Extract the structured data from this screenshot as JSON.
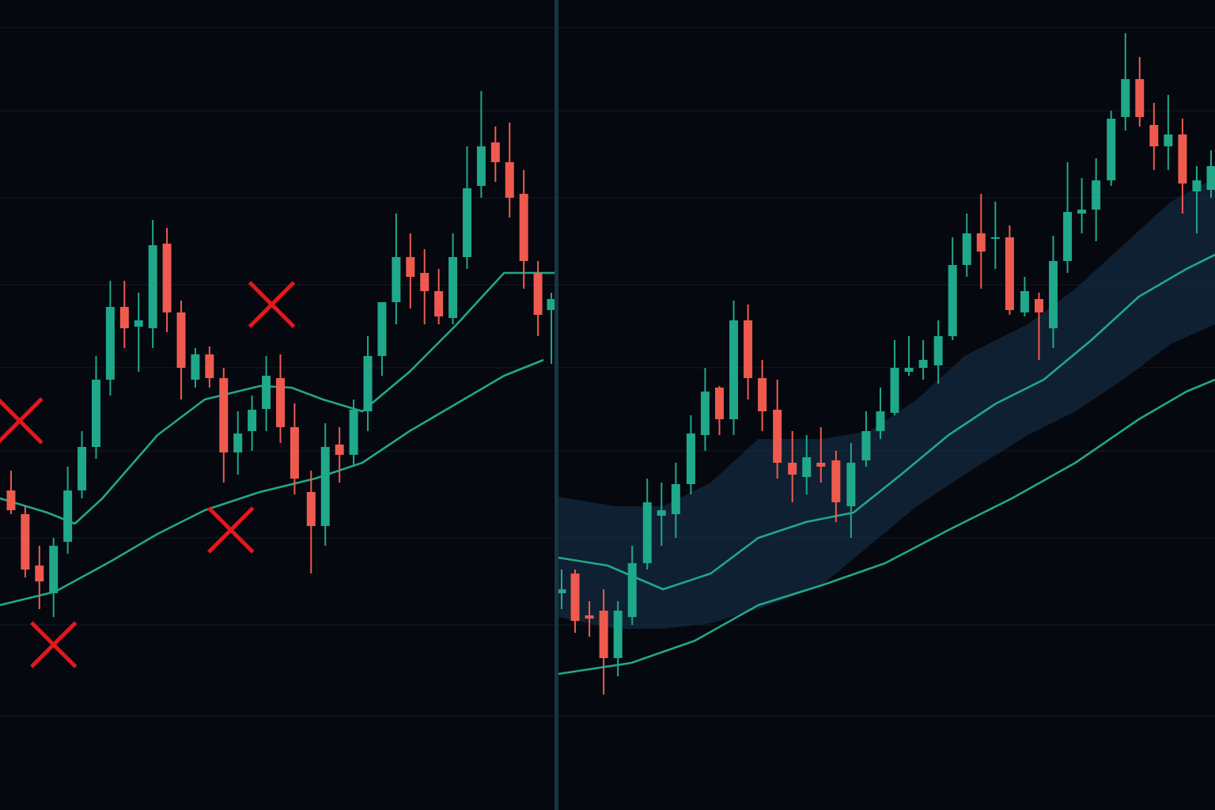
{
  "chart_data": [
    {
      "type": "candlestick",
      "xlim": [
        0,
        704
      ],
      "ylim": [
        0,
        1024
      ],
      "yticks": [
        119,
        234,
        344,
        454,
        559,
        664,
        774,
        884,
        989
      ],
      "grid": true,
      "up_color": "#1fa88a",
      "down_color": "#ef5a4f",
      "x": [
        14,
        32,
        50,
        68,
        86,
        104,
        122,
        140,
        158,
        176,
        194,
        212,
        230,
        248,
        266,
        284,
        302,
        320,
        338,
        356,
        374,
        395,
        413,
        431,
        449,
        467,
        485,
        503,
        521,
        539,
        557,
        575,
        593,
        611,
        629,
        647,
        665,
        683,
        700
      ],
      "open": [
        404,
        374,
        309,
        274,
        339,
        404,
        459,
        544,
        636,
        611,
        609,
        716,
        629,
        544,
        576,
        546,
        452,
        479,
        507,
        546,
        484,
        402,
        359,
        462,
        449,
        504,
        574,
        642,
        699,
        679,
        656,
        622,
        699,
        789,
        844,
        819,
        779,
        679,
        632
      ],
      "high": [
        429,
        384,
        334,
        344,
        434,
        479,
        574,
        669,
        669,
        654,
        746,
        736,
        644,
        584,
        586,
        559,
        504,
        524,
        574,
        576,
        514,
        429,
        489,
        484,
        519,
        599,
        639,
        754,
        729,
        709,
        684,
        729,
        839,
        909,
        864,
        869,
        809,
        694,
        654
      ],
      "low": [
        374,
        294,
        254,
        244,
        324,
        394,
        444,
        524,
        584,
        554,
        584,
        604,
        519,
        534,
        534,
        414,
        424,
        454,
        479,
        464,
        399,
        299,
        334,
        414,
        434,
        479,
        549,
        614,
        634,
        614,
        614,
        614,
        684,
        774,
        794,
        749,
        659,
        599,
        564
      ],
      "close": [
        379,
        304,
        289,
        334,
        404,
        459,
        544,
        636,
        609,
        619,
        714,
        629,
        559,
        576,
        546,
        452,
        476,
        506,
        549,
        484,
        419,
        359,
        459,
        449,
        506,
        574,
        642,
        699,
        674,
        656,
        624,
        699,
        786,
        839,
        819,
        774,
        694,
        626,
        646
      ],
      "lines": [
        {
          "color": "#1fa88a",
          "x": [
            0,
            60,
            95,
            130,
            200,
            260,
            330,
            370,
            410,
            460,
            520,
            580,
            640,
            705
          ],
          "values": [
            394,
            376,
            362,
            394,
            474,
            519,
            536,
            534,
            519,
            504,
            554,
            614,
            679,
            679
          ]
        },
        {
          "color": "#1fa88a",
          "x": [
            0,
            70,
            140,
            200,
            260,
            330,
            400,
            460,
            520,
            580,
            640,
            690
          ],
          "values": [
            259,
            276,
            314,
            349,
            379,
            402,
            419,
            439,
            479,
            514,
            549,
            569
          ]
        }
      ],
      "markers": {
        "color": "#e8161b",
        "x": [
          25,
          345,
          293,
          68
        ],
        "values": [
          492,
          639,
          354,
          209
        ]
      }
    },
    {
      "type": "candlestick",
      "xlim": [
        708,
        1536
      ],
      "ylim": [
        0,
        1024
      ],
      "yticks": [
        119,
        234,
        344,
        454,
        559,
        664,
        774,
        884,
        989
      ],
      "grid": true,
      "up_color": "#1fa88a",
      "down_color": "#ef5a4f",
      "x": [
        712,
        729,
        747,
        765,
        783,
        801,
        820,
        838,
        856,
        875,
        893,
        911,
        929,
        947,
        965,
        984,
        1003,
        1021,
        1039,
        1058,
        1077,
        1096,
        1114,
        1132,
        1150,
        1168,
        1187,
        1205,
        1223,
        1241,
        1259,
        1277,
        1296,
        1314,
        1332,
        1350,
        1368,
        1386,
        1405,
        1423,
        1441,
        1459,
        1477,
        1495,
        1513,
        1531
      ],
      "open": [
        274,
        299,
        246,
        252,
        192,
        244,
        312,
        372,
        374,
        412,
        474,
        534,
        494,
        619,
        546,
        506,
        439,
        421,
        439,
        442,
        384,
        442,
        479,
        502,
        554,
        559,
        562,
        599,
        689,
        729,
        722,
        724,
        629,
        646,
        609,
        694,
        754,
        759,
        796,
        876,
        924,
        866,
        839,
        854,
        782,
        784
      ],
      "high": [
        304,
        304,
        264,
        279,
        264,
        334,
        419,
        414,
        439,
        499,
        559,
        536,
        644,
        639,
        569,
        544,
        479,
        474,
        484,
        454,
        464,
        504,
        534,
        594,
        599,
        594,
        619,
        724,
        754,
        779,
        769,
        739,
        674,
        654,
        726,
        819,
        799,
        824,
        884,
        982,
        952,
        894,
        904,
        874,
        814,
        834
      ],
      "low": [
        254,
        224,
        219,
        146,
        169,
        234,
        304,
        334,
        344,
        399,
        454,
        474,
        474,
        519,
        479,
        419,
        389,
        399,
        414,
        364,
        344,
        434,
        469,
        499,
        549,
        544,
        539,
        594,
        674,
        659,
        684,
        626,
        624,
        569,
        584,
        679,
        729,
        719,
        789,
        859,
        864,
        809,
        809,
        754,
        729,
        774
      ],
      "close": [
        279,
        239,
        242,
        192,
        252,
        312,
        389,
        379,
        412,
        476,
        529,
        494,
        619,
        546,
        504,
        439,
        424,
        446,
        434,
        389,
        439,
        479,
        504,
        559,
        559,
        569,
        599,
        689,
        729,
        706,
        724,
        632,
        656,
        629,
        694,
        756,
        759,
        796,
        874,
        924,
        876,
        839,
        854,
        792,
        796,
        814
      ],
      "band": {
        "color": "#16304a",
        "x": [
          708,
          780,
          840,
          900,
          960,
          1040,
          1100,
          1160,
          1220,
          1300,
          1360,
          1420,
          1480,
          1536
        ],
        "upper": [
          396,
          384,
          384,
          414,
          469,
          469,
          479,
          519,
          574,
          614,
          659,
          714,
          769,
          799
        ],
        "lower": [
          244,
          229,
          229,
          236,
          254,
          284,
          334,
          384,
          424,
          474,
          504,
          544,
          589,
          614
        ]
      },
      "lines": [
        {
          "color": "#1fa88a",
          "x": [
            708,
            770,
            840,
            900,
            960,
            1020,
            1080,
            1140,
            1200,
            1260,
            1320,
            1380,
            1440,
            1500,
            1536
          ],
          "values": [
            319,
            309,
            279,
            299,
            344,
            364,
            376,
            424,
            474,
            514,
            544,
            594,
            649,
            684,
            702
          ]
        },
        {
          "color": "#1fa88a",
          "x": [
            708,
            800,
            880,
            960,
            1040,
            1120,
            1200,
            1280,
            1360,
            1440,
            1500,
            1536
          ],
          "values": [
            172,
            186,
            214,
            259,
            284,
            312,
            354,
            394,
            439,
            494,
            529,
            544
          ]
        }
      ]
    }
  ]
}
